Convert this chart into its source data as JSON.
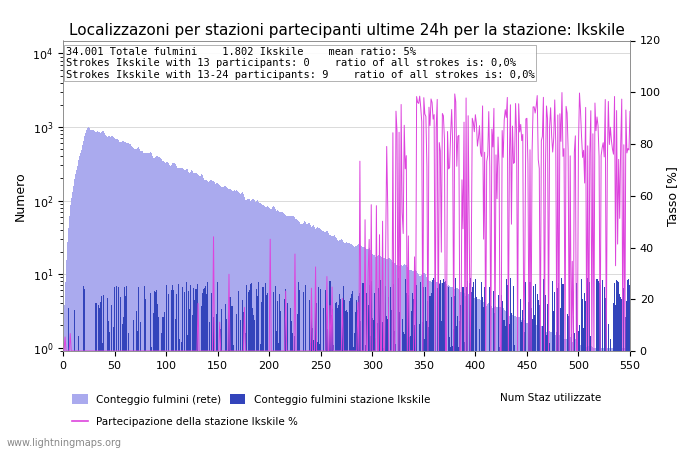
{
  "title": "Localizzazoni per stazioni partecipanti ultime 24h per la stazione: Ikskile",
  "ylabel_left": "Numero",
  "ylabel_right": "Tasso [%]",
  "annotation_lines": [
    "34.001 Totale fulmini    1.802 Ikskile    mean ratio: 5%",
    "Strokes Ikskile with 13 participants: 0    ratio of all strokes is: 0,0%",
    "Strokes Ikskile with 13-24 participants: 9    ratio of all strokes is: 0,0%"
  ],
  "watermark": "www.lightningmaps.org",
  "legend_net": "Conteggio fulmini (rete)",
  "legend_station": "Conteggio fulmini stazione Ikskile",
  "legend_numstaz": "Num Staz utilizzate",
  "legend_participation": "Partecipazione della stazione Ikskile %",
  "color_net_bar": "#aaaaee",
  "color_station_bar": "#3344bb",
  "color_line": "#dd44dd",
  "ylim_left": [
    0.9,
    15000
  ],
  "ylim_right": [
    0,
    120
  ],
  "xlim": [
    0,
    550
  ],
  "xticks": [
    0,
    50,
    100,
    150,
    200,
    250,
    300,
    350,
    400,
    450,
    500,
    550
  ],
  "right_yticks": [
    0,
    20,
    40,
    60,
    80,
    100,
    120
  ],
  "title_fontsize": 11,
  "annotation_fontsize": 7.5,
  "n_stations": 550
}
